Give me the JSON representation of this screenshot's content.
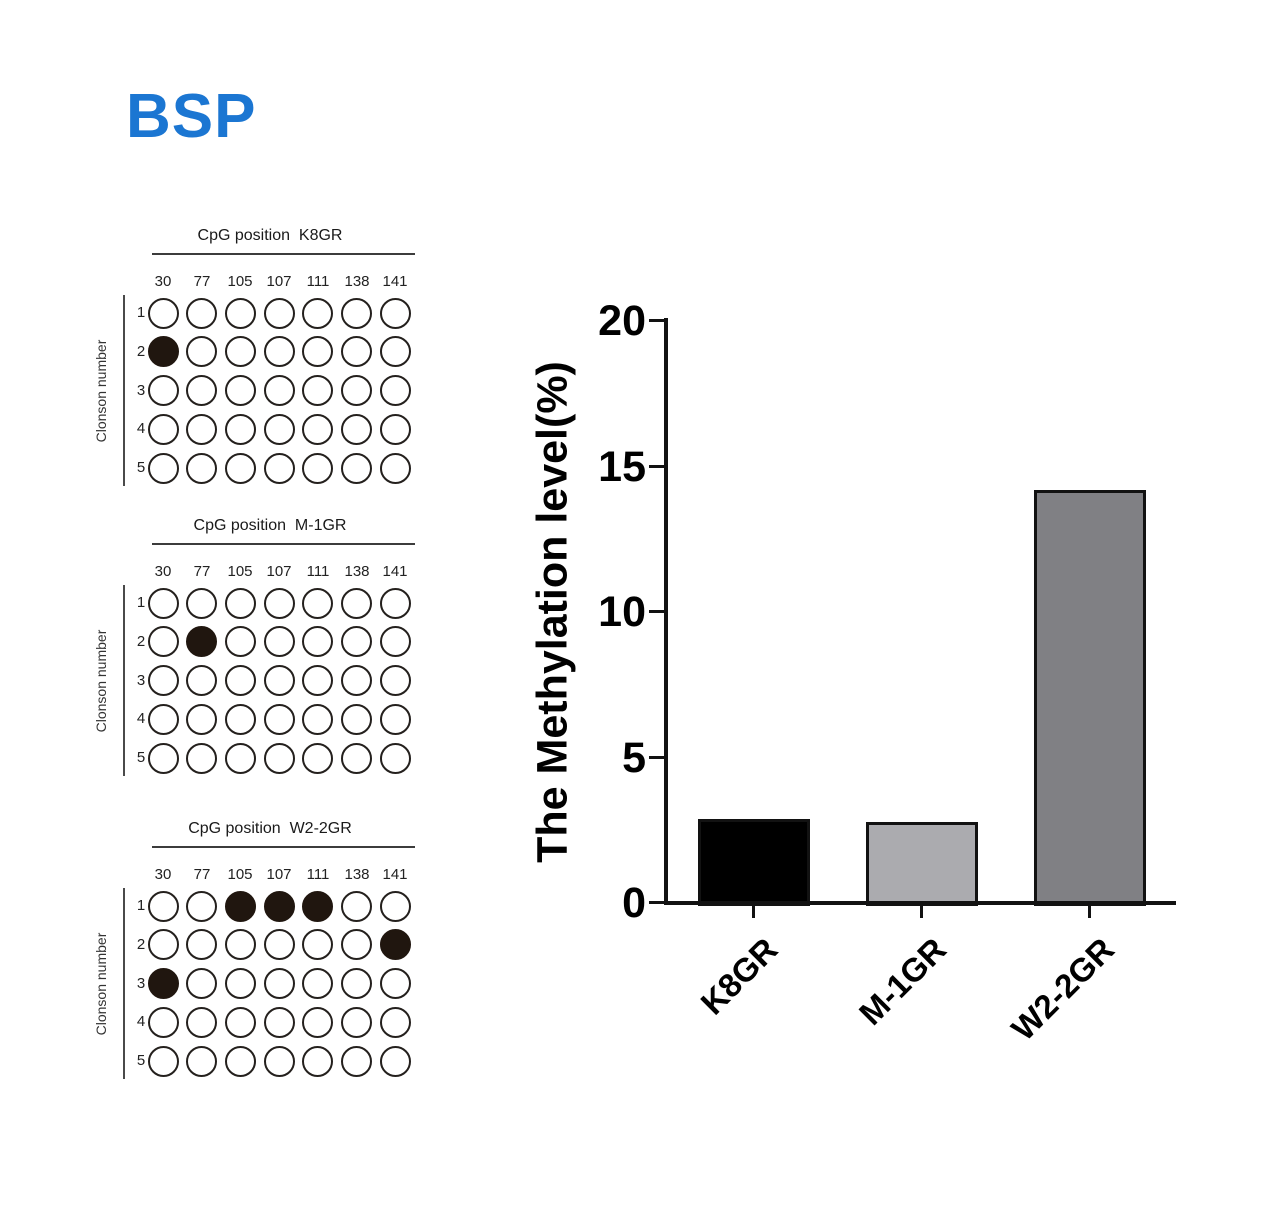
{
  "figure_title": "BSP",
  "colors": {
    "figure_title_blue": "#1b76d2",
    "axis_ink": "#121212",
    "dot_outline": "#24201d",
    "dot_fill": "#20160f"
  },
  "panels": [
    {
      "title_prefix": "CpG position",
      "sample": "K8GR",
      "columns": [
        "30",
        "77",
        "105",
        "107",
        "111",
        "138",
        "141"
      ],
      "rows": [
        "1",
        "2",
        "3",
        "4",
        "5"
      ],
      "row_axis_label": "Clonson number",
      "filled_cells": [
        [
          1,
          0
        ]
      ]
    },
    {
      "title_prefix": "CpG position",
      "sample": "M-1GR",
      "columns": [
        "30",
        "77",
        "105",
        "107",
        "111",
        "138",
        "141"
      ],
      "rows": [
        "1",
        "2",
        "3",
        "4",
        "5"
      ],
      "row_axis_label": "Clonson number",
      "filled_cells": [
        [
          1,
          1
        ]
      ]
    },
    {
      "title_prefix": "CpG position",
      "sample": "W2-2GR",
      "columns": [
        "30",
        "77",
        "105",
        "107",
        "111",
        "138",
        "141"
      ],
      "rows": [
        "1",
        "2",
        "3",
        "4",
        "5"
      ],
      "row_axis_label": "Clonson number",
      "filled_cells": [
        [
          0,
          2
        ],
        [
          0,
          3
        ],
        [
          0,
          4
        ],
        [
          1,
          6
        ],
        [
          2,
          0
        ]
      ]
    }
  ],
  "chart_data": {
    "type": "bar",
    "categories": [
      "K8GR",
      "M-1GR",
      "W2-2GR"
    ],
    "values": [
      2.9,
      2.8,
      14.2
    ],
    "bar_colors": [
      "#000000",
      "#ababaf",
      "#808084"
    ],
    "title": "",
    "xlabel": "",
    "ylabel": "The Methylation level(%)",
    "yticks": [
      0,
      5,
      10,
      15,
      20
    ],
    "ylim": [
      0,
      20
    ],
    "grid": false,
    "legend": "none"
  }
}
